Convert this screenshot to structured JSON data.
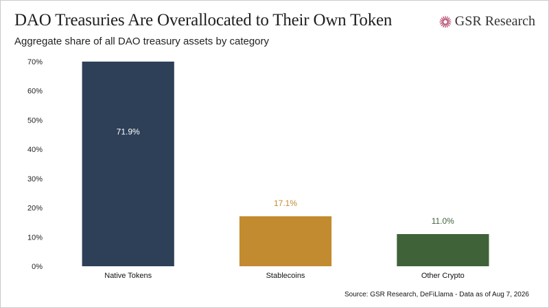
{
  "header": {
    "title": "DAO Treasuries Are Overallocated to Their Own Token",
    "subtitle": "Aggregate share of all DAO treasury assets by category"
  },
  "brand": {
    "name": "GSR Research",
    "icon": "gsr-sunburst-icon",
    "color": "#b5476b"
  },
  "footer": {
    "source": "Source: GSR Research, DeFiLlama - Data as of Aug 7, 2026"
  },
  "chart_data": {
    "type": "bar",
    "title": "DAO Treasuries Are Overallocated to Their Own Token",
    "subtitle": "Aggregate share of all DAO treasury assets by category",
    "categories": [
      "Native Tokens",
      "Stablecoins",
      "Other Crypto"
    ],
    "values": [
      71.9,
      17.1,
      11.0
    ],
    "data_labels": [
      "71.9%",
      "17.1%",
      "11.0%"
    ],
    "colors": [
      "#2e3f58",
      "#c38b2f",
      "#3f6238"
    ],
    "label_colors": [
      "#ffffff",
      "#c38b2f",
      "#3f6238"
    ],
    "ylim": [
      0,
      70
    ],
    "yticks": [
      0,
      10,
      20,
      30,
      40,
      50,
      60,
      70
    ],
    "ytick_labels": [
      "0%",
      "10%",
      "20%",
      "30%",
      "40%",
      "50%",
      "60%",
      "70%"
    ],
    "xlabel": "",
    "ylabel": "",
    "grid": false,
    "legend": "none"
  }
}
